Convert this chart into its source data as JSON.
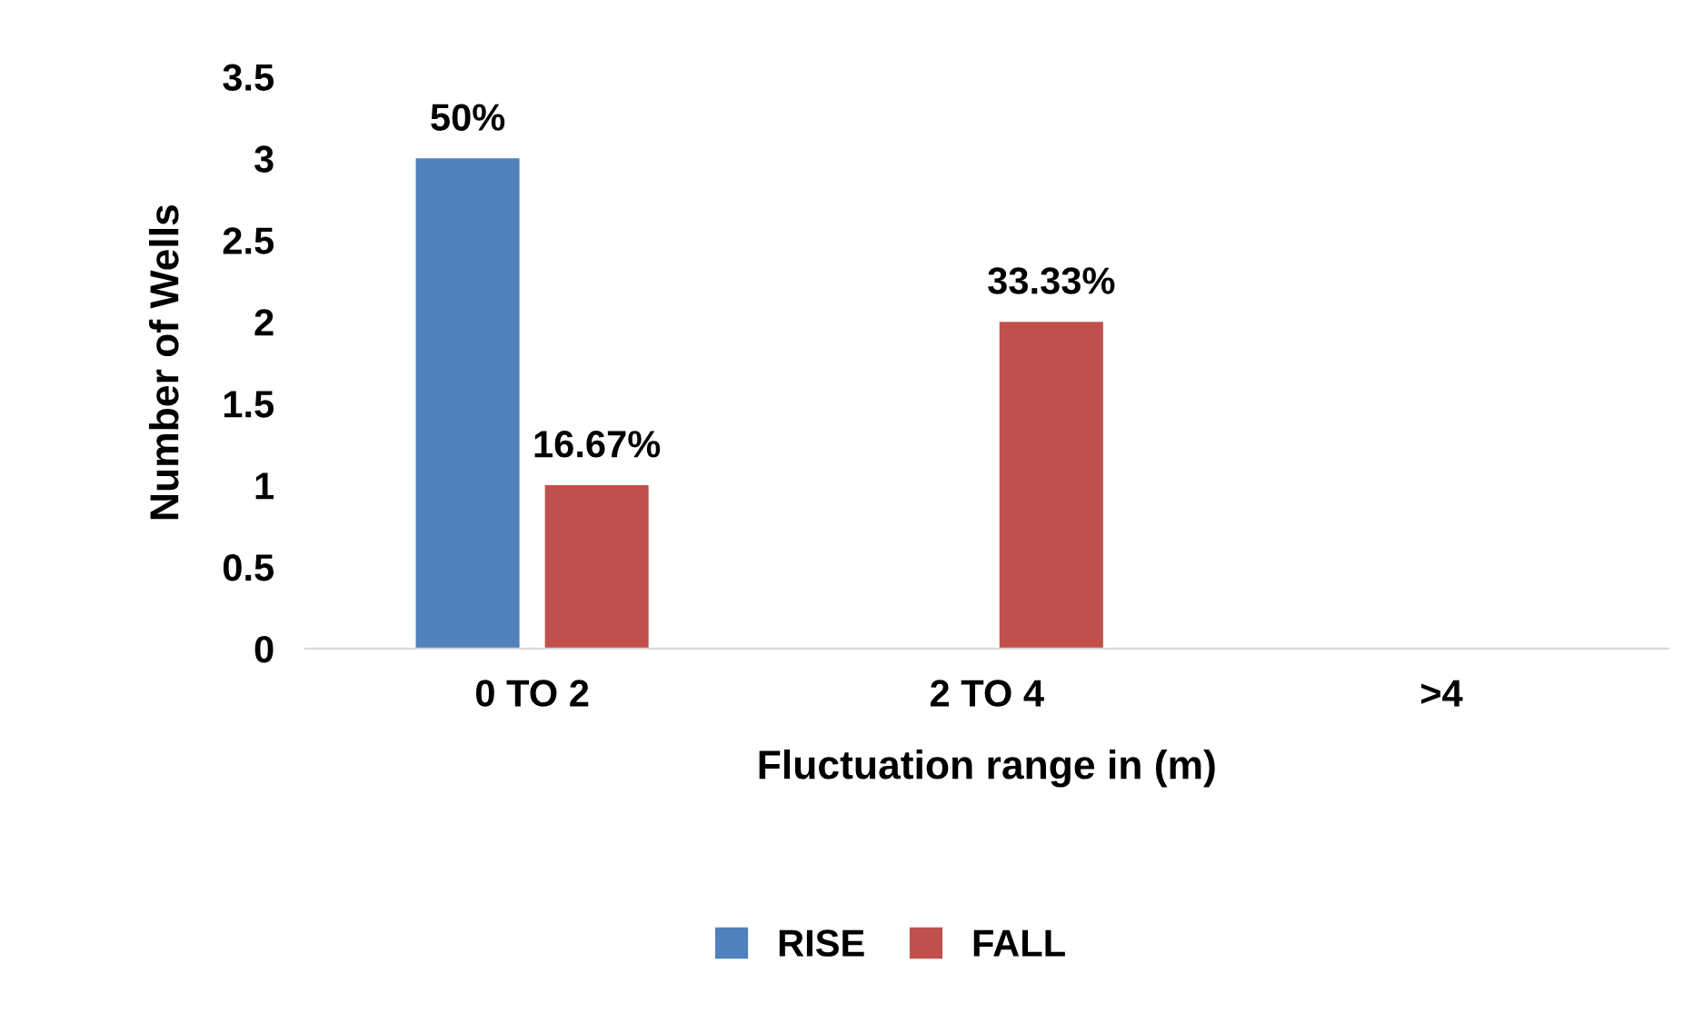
{
  "chart_data": {
    "type": "bar",
    "xlabel": "Fluctuation range in (m)",
    "ylabel": "Number of Wells",
    "categories": [
      "0 TO 2",
      "2 TO 4",
      ">4"
    ],
    "series": [
      {
        "name": "RISE",
        "color": "#4f81bd",
        "values": [
          3,
          0,
          0
        ]
      },
      {
        "name": "FALL",
        "color": "#c0504d",
        "values": [
          1,
          2,
          0
        ]
      }
    ],
    "annotations": [
      "50%",
      "16.67%",
      "33.33%"
    ],
    "ylim": [
      0,
      3.5
    ],
    "yticks": [
      0,
      0.5,
      1,
      1.5,
      2,
      2.5,
      3,
      3.5
    ],
    "grid": false,
    "legend": "bottom"
  }
}
